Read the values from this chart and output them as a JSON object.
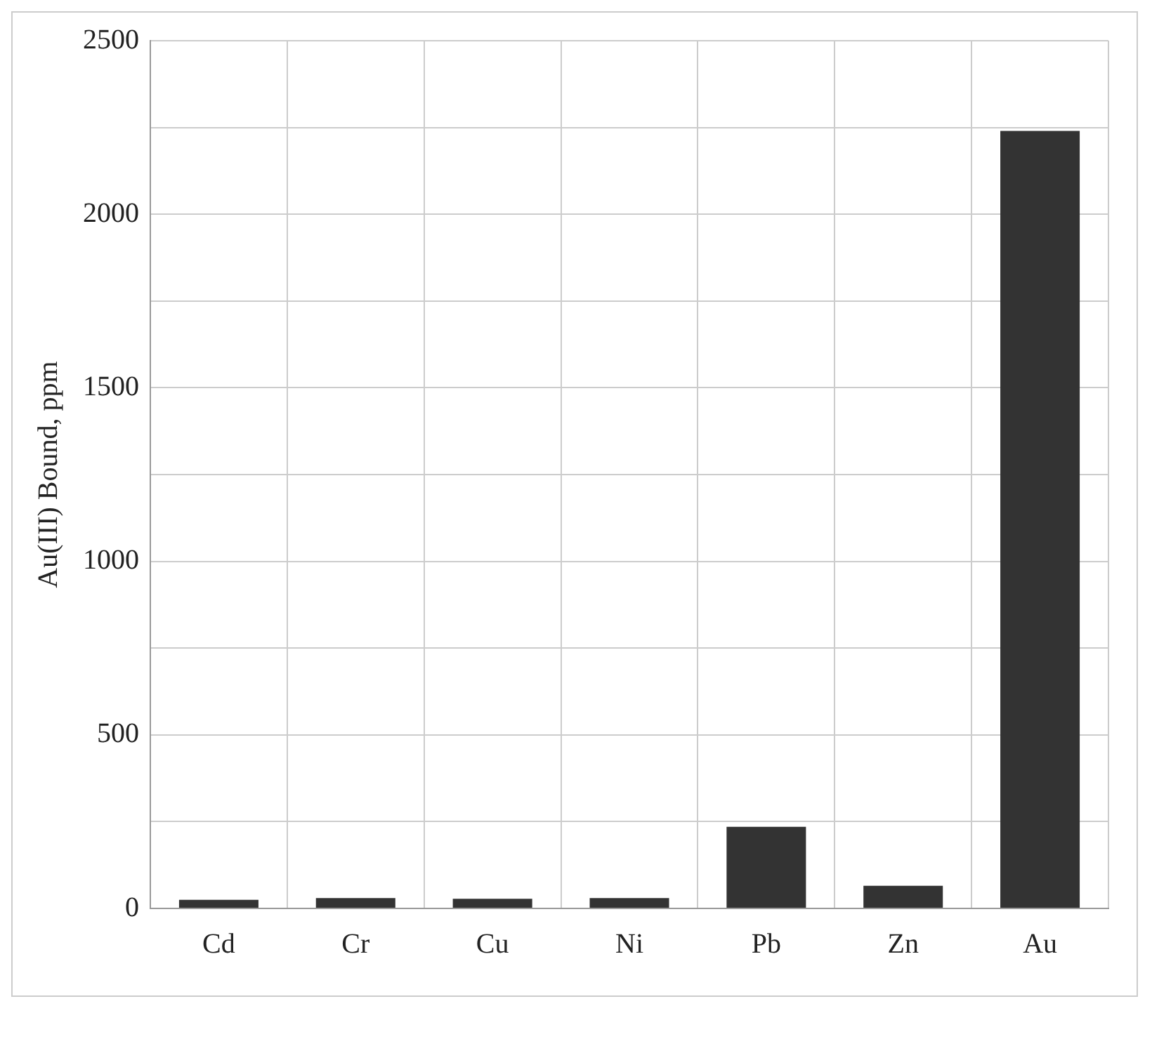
{
  "chart_data": {
    "type": "bar",
    "ylabel": "Au(III) Bound, ppm",
    "categories": [
      "Cd",
      "Cr",
      "Cu",
      "Ni",
      "Pb",
      "Zn",
      "Au"
    ],
    "values": [
      25,
      30,
      28,
      30,
      235,
      65,
      2240
    ],
    "color": "#333333",
    "ylim": [
      0,
      2500
    ],
    "yticks": [
      0,
      {
        "value": 250,
        "label": null
      },
      500,
      {
        "value": 750,
        "label": null
      },
      1000,
      {
        "value": 1250,
        "label": null
      },
      1500,
      {
        "value": 1750,
        "label": null
      },
      2000,
      {
        "value": 2250,
        "label": null
      },
      2500
    ],
    "grid": true,
    "legend": false
  }
}
